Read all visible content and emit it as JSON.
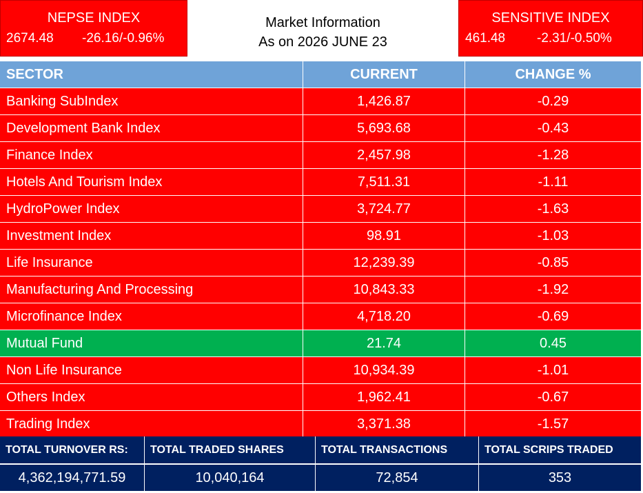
{
  "nepse": {
    "title": "NEPSE INDEX",
    "value": "2674.48",
    "change": "-26.16/-0.96%"
  },
  "market_info": {
    "line1": "Market Information",
    "line2": "As on 2026 JUNE 23"
  },
  "sensitive": {
    "title": "SENSITIVE INDEX",
    "value": "461.48",
    "change": "-2.31/-0.50%"
  },
  "colors": {
    "negative": "#ff0000",
    "positive": "#00b050",
    "header": "#6fa3d8",
    "footer": "#002060"
  },
  "table": {
    "headers": [
      "SECTOR",
      "CURRENT",
      "CHANGE %"
    ],
    "rows": [
      {
        "sector": "Banking SubIndex",
        "current": "1,426.87",
        "change": "-0.29",
        "trend": "red"
      },
      {
        "sector": "Development Bank Index",
        "current": "5,693.68",
        "change": "-0.43",
        "trend": "red"
      },
      {
        "sector": "Finance Index",
        "current": "2,457.98",
        "change": "-1.28",
        "trend": "red"
      },
      {
        "sector": "Hotels And Tourism Index",
        "current": "7,511.31",
        "change": "-1.11",
        "trend": "red"
      },
      {
        "sector": "HydroPower Index",
        "current": "3,724.77",
        "change": "-1.63",
        "trend": "red"
      },
      {
        "sector": "Investment Index",
        "current": "98.91",
        "change": "-1.03",
        "trend": "red"
      },
      {
        "sector": "Life Insurance",
        "current": "12,239.39",
        "change": "-0.85",
        "trend": "red"
      },
      {
        "sector": "Manufacturing And Processing",
        "current": "10,843.33",
        "change": "-1.92",
        "trend": "red"
      },
      {
        "sector": "Microfinance Index",
        "current": "4,718.20",
        "change": "-0.69",
        "trend": "red"
      },
      {
        "sector": "Mutual Fund",
        "current": "21.74",
        "change": "0.45",
        "trend": "green"
      },
      {
        "sector": "Non Life Insurance",
        "current": "10,934.39",
        "change": "-1.01",
        "trend": "red"
      },
      {
        "sector": "Others Index",
        "current": "1,962.41",
        "change": "-0.67",
        "trend": "red"
      },
      {
        "sector": "Trading Index",
        "current": "3,371.38",
        "change": "-1.57",
        "trend": "red"
      }
    ]
  },
  "totals": {
    "labels": [
      "TOTAL TURNOVER RS:",
      "TOTAL TRADED SHARES",
      "TOTAL TRANSACTIONS",
      "TOTAL SCRIPS TRADED"
    ],
    "values": [
      "4,362,194,771.59",
      "10,040,164",
      "72,854",
      "353"
    ]
  }
}
